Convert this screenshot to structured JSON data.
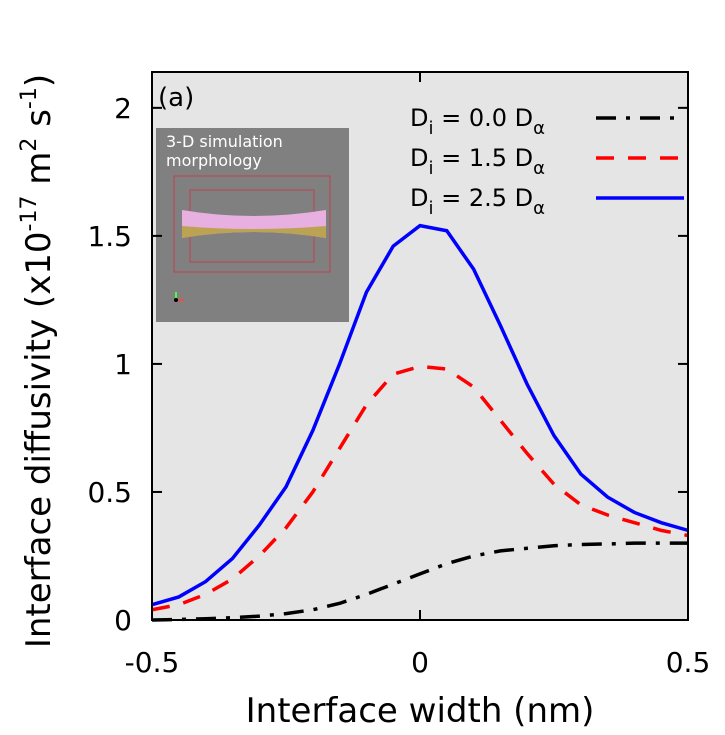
{
  "chart_data": {
    "type": "line",
    "xlabel": "Interface width (nm)",
    "ylabel": [
      "Interface diffusivity (x10",
      "-17",
      " m",
      "2",
      " s",
      "-1",
      ")"
    ],
    "annotation": "(a)",
    "inset_text": [
      "3-D simulation",
      "morphology"
    ],
    "x": [
      -0.5,
      -0.45,
      -0.4,
      -0.35,
      -0.3,
      -0.25,
      -0.2,
      -0.15,
      -0.1,
      -0.05,
      0,
      0.05,
      0.1,
      0.15,
      0.2,
      0.25,
      0.3,
      0.35,
      0.4,
      0.45,
      0.5
    ],
    "series": [
      {
        "name": "Di = 0.0 Dα",
        "color": "#000000",
        "dash": "dashdot",
        "values": [
          0.0,
          0.002,
          0.005,
          0.009,
          0.015,
          0.025,
          0.04,
          0.065,
          0.1,
          0.14,
          0.18,
          0.22,
          0.25,
          0.27,
          0.28,
          0.29,
          0.295,
          0.297,
          0.3,
          0.3,
          0.3
        ]
      },
      {
        "name": "Di = 1.5 Dα",
        "color": "#ff0000",
        "dash": "dashed",
        "values": [
          0.04,
          0.06,
          0.1,
          0.16,
          0.25,
          0.36,
          0.5,
          0.67,
          0.84,
          0.96,
          0.99,
          0.98,
          0.91,
          0.78,
          0.65,
          0.53,
          0.45,
          0.41,
          0.38,
          0.35,
          0.33
        ]
      },
      {
        "name": "Di = 2.5 Dα",
        "color": "#0000ff",
        "dash": "solid",
        "values": [
          0.06,
          0.09,
          0.15,
          0.24,
          0.37,
          0.52,
          0.74,
          1.0,
          1.28,
          1.46,
          1.54,
          1.52,
          1.37,
          1.15,
          0.92,
          0.72,
          0.57,
          0.48,
          0.42,
          0.38,
          0.35
        ]
      }
    ],
    "xlim": [
      -0.5,
      0.5
    ],
    "xticks": [
      -0.5,
      0,
      0.5
    ],
    "ylim": [
      0,
      2.14
    ],
    "yticks": [
      0,
      0.5,
      1,
      1.5,
      2
    ],
    "grid": false,
    "legend": "upper right",
    "background": "#e5e5e5"
  }
}
